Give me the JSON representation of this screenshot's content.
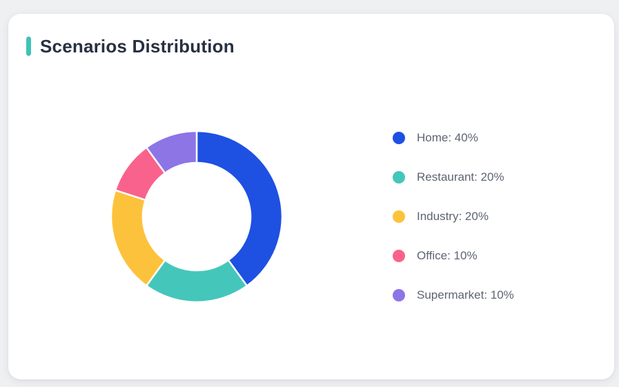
{
  "page": {
    "background_color": "#EFF0F2",
    "card_color": "#FFFFFF"
  },
  "card": {
    "title": "Scenarios Distribution",
    "accent_color": "#3EC3B7"
  },
  "chart_data": {
    "type": "pie",
    "subtype": "donut",
    "title": "Scenarios Distribution",
    "series": [
      {
        "name": "Home",
        "value": 40,
        "percent": "40%",
        "color": "#1E50E2",
        "legend_label": "Home: 40%"
      },
      {
        "name": "Restaurant",
        "value": 20,
        "percent": "20%",
        "color": "#45C6BB",
        "legend_label": "Restaurant: 20%"
      },
      {
        "name": "Industry",
        "value": 20,
        "percent": "20%",
        "color": "#FDC23B",
        "legend_label": "Industry: 20%"
      },
      {
        "name": "Office",
        "value": 10,
        "percent": "10%",
        "color": "#F9628C",
        "legend_label": "Office: 10%"
      },
      {
        "name": "Supermarket",
        "value": 10,
        "percent": "10%",
        "color": "#8D75E6",
        "legend_label": "Supermarket: 10%"
      }
    ],
    "start_angle_deg": 0,
    "direction": "clockwise",
    "outer_radius_px": 124,
    "inner_radius_px": 78,
    "segment_gap_color": "#FFFFFF",
    "segment_gap_width": 2.5,
    "legend_position": "right",
    "legend_text_color": "#5D6472"
  }
}
